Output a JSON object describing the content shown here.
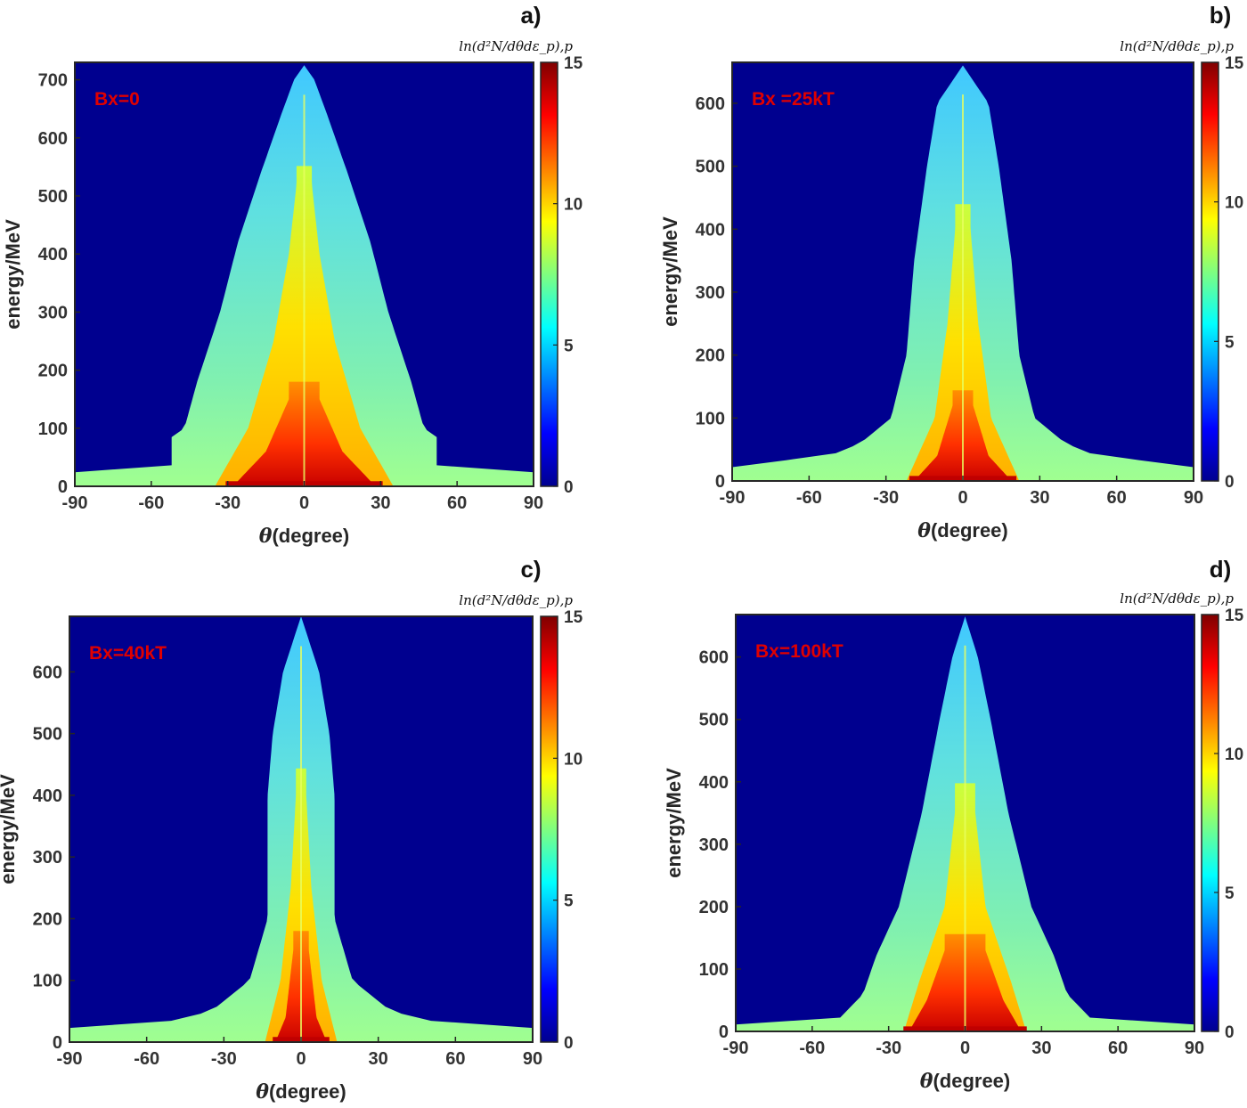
{
  "figure": {
    "colors": {
      "background": "#00008f",
      "frame": "#262626",
      "annotation": "#e00000"
    }
  },
  "chart_data": [
    {
      "type": "heatmap",
      "panel_label": "a)",
      "annotation": "Bx=0",
      "xlabel_symbol": "θ",
      "xlabel": "(degree)",
      "ylabel": "energy/MeV",
      "xlim": [
        -90,
        90
      ],
      "ylim": [
        0,
        730
      ],
      "xticks": [
        -90,
        -60,
        -30,
        0,
        30,
        60,
        90
      ],
      "yticks": [
        0,
        100,
        200,
        300,
        400,
        500,
        600,
        700
      ],
      "colorbar": {
        "label": "ln(d²N/dθdε_p),p",
        "range": [
          0,
          15
        ],
        "ticks": [
          0,
          5,
          10,
          15
        ],
        "colormap": "jet"
      },
      "envelope": {
        "peak_energy": 725,
        "width_profile": [
          [
            0,
            90
          ],
          [
            25,
            90
          ],
          [
            26,
            52
          ],
          [
            85,
            52
          ],
          [
            100,
            47
          ],
          [
            180,
            42
          ],
          [
            300,
            33
          ],
          [
            420,
            26
          ],
          [
            540,
            17
          ],
          [
            640,
            9
          ],
          [
            700,
            4
          ],
          [
            725,
            0
          ]
        ]
      },
      "core_profile": [
        [
          0,
          35
        ],
        [
          100,
          22
        ],
        [
          250,
          12
        ],
        [
          400,
          6
        ],
        [
          520,
          3
        ]
      ],
      "hot_profile": [
        [
          0,
          28
        ],
        [
          60,
          15
        ],
        [
          150,
          6
        ]
      ]
    },
    {
      "type": "heatmap",
      "panel_label": "b)",
      "annotation": "Bx =25kT",
      "xlabel_symbol": "θ",
      "xlabel": "(degree)",
      "ylabel": "energy/MeV",
      "xlim": [
        -90,
        90
      ],
      "ylim": [
        0,
        665
      ],
      "xticks": [
        -90,
        -60,
        -30,
        0,
        30,
        60,
        90
      ],
      "yticks": [
        0,
        100,
        200,
        300,
        400,
        500,
        600
      ],
      "colorbar": {
        "label": "ln(d²N/dθdε_p),p",
        "range": [
          0,
          15
        ],
        "ticks": [
          0,
          5,
          10,
          15
        ],
        "colormap": "jet"
      },
      "envelope": {
        "peak_energy": 660,
        "width_profile": [
          [
            0,
            90
          ],
          [
            30,
            90
          ],
          [
            35,
            55
          ],
          [
            60,
            40
          ],
          [
            100,
            28
          ],
          [
            200,
            22
          ],
          [
            350,
            19
          ],
          [
            500,
            14
          ],
          [
            600,
            10
          ],
          [
            660,
            0
          ]
        ]
      },
      "core_profile": [
        [
          0,
          22
        ],
        [
          100,
          11
        ],
        [
          250,
          6
        ],
        [
          400,
          3
        ]
      ],
      "hot_profile": [
        [
          0,
          19
        ],
        [
          40,
          10
        ],
        [
          120,
          4
        ]
      ]
    },
    {
      "type": "heatmap",
      "panel_label": "c)",
      "annotation": "Bx=40kT",
      "xlabel_symbol": "θ",
      "xlabel": "(degree)",
      "ylabel": "energy/MeV",
      "xlim": [
        -90,
        90
      ],
      "ylim": [
        0,
        690
      ],
      "xticks": [
        -90,
        -60,
        -30,
        0,
        30,
        60,
        90
      ],
      "yticks": [
        0,
        100,
        200,
        300,
        400,
        500,
        600
      ],
      "colorbar": {
        "label": "ln(d²N/dθdε_p),p",
        "range": [
          0,
          15
        ],
        "ticks": [
          0,
          5,
          10,
          15
        ],
        "colormap": "jet"
      },
      "envelope": {
        "peak_energy": 690,
        "width_profile": [
          [
            0,
            90
          ],
          [
            28,
            90
          ],
          [
            30,
            55
          ],
          [
            50,
            35
          ],
          [
            100,
            20
          ],
          [
            200,
            13
          ],
          [
            400,
            13
          ],
          [
            500,
            11
          ],
          [
            600,
            7
          ],
          [
            690,
            0
          ]
        ]
      },
      "core_profile": [
        [
          0,
          14
        ],
        [
          100,
          8
        ],
        [
          250,
          4
        ],
        [
          400,
          2
        ]
      ],
      "hot_profile": [
        [
          0,
          10
        ],
        [
          40,
          6
        ],
        [
          150,
          3
        ]
      ]
    },
    {
      "type": "heatmap",
      "panel_label": "d)",
      "annotation": "Bx=100kT",
      "xlabel_symbol": "θ",
      "xlabel": "(degree)",
      "ylabel": "energy/MeV",
      "xlim": [
        -90,
        90
      ],
      "ylim": [
        0,
        668
      ],
      "xticks": [
        -90,
        -60,
        -30,
        0,
        30,
        60,
        90
      ],
      "yticks": [
        0,
        100,
        200,
        300,
        400,
        500,
        600
      ],
      "colorbar": {
        "label": "ln(d²N/dθdε_p),p",
        "range": [
          0,
          15
        ],
        "ticks": [
          0,
          5,
          10,
          15
        ],
        "colormap": "jet"
      },
      "envelope": {
        "peak_energy": 665,
        "width_profile": [
          [
            0,
            90
          ],
          [
            15,
            90
          ],
          [
            18,
            50
          ],
          [
            60,
            40
          ],
          [
            120,
            35
          ],
          [
            200,
            26
          ],
          [
            350,
            17
          ],
          [
            500,
            10
          ],
          [
            600,
            5
          ],
          [
            665,
            0
          ]
        ]
      },
      "core_profile": [
        [
          0,
          24
        ],
        [
          80,
          18
        ],
        [
          200,
          8
        ],
        [
          350,
          4
        ]
      ],
      "hot_profile": [
        [
          0,
          22
        ],
        [
          50,
          15
        ],
        [
          130,
          8
        ]
      ]
    }
  ]
}
